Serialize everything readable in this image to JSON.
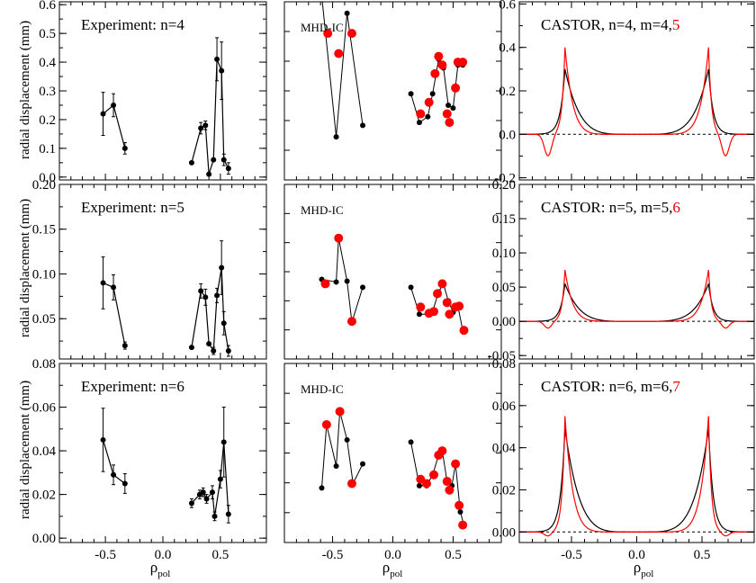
{
  "figure": {
    "ylabel": "radial displacement (mm)",
    "xlabel_main": "ρ",
    "xlabel_sub": "pol",
    "x_ticks": [
      "-0.5",
      "0.0",
      "0.5"
    ],
    "x_tick_values": [
      -0.5,
      0.0,
      0.5
    ]
  },
  "colors": {
    "black": "#000000",
    "red": "#ff0000",
    "red_text": "#e00000"
  },
  "chart_data": [
    {
      "type": "scatter",
      "row": 0,
      "col": 0,
      "title": "Experiment: n=4",
      "xlim": [
        -0.9,
        0.9
      ],
      "ylim": [
        -0.01,
        0.61
      ],
      "yticks": [
        0.0,
        0.1,
        0.2,
        0.3,
        0.4,
        0.5,
        0.6
      ],
      "ytick_labels": [
        "0.0",
        "0.1",
        "0.2",
        "0.3",
        "0.4",
        "0.5",
        "0.6"
      ],
      "series": [
        {
          "color": "black",
          "errorbars": true,
          "points": [
            [
              -0.52,
              0.22,
              0.075
            ],
            [
              -0.43,
              0.25,
              0.04
            ],
            [
              -0.33,
              0.1,
              0.02
            ]
          ]
        },
        {
          "color": "black",
          "errorbars": true,
          "points": [
            [
              0.25,
              0.05,
              0.0
            ],
            [
              0.33,
              0.17,
              0.02
            ],
            [
              0.37,
              0.18,
              0.015
            ],
            [
              0.4,
              0.01,
              0.0
            ],
            [
              0.44,
              0.06,
              0.0
            ],
            [
              0.47,
              0.41,
              0.075
            ],
            [
              0.51,
              0.37,
              0.1
            ],
            [
              0.53,
              0.06,
              0.02
            ],
            [
              0.57,
              0.03,
              0.02
            ]
          ]
        }
      ]
    },
    {
      "type": "scatter",
      "row": 0,
      "col": 1,
      "title": "MHD-IC",
      "xlim": [
        -0.9,
        0.9
      ],
      "ylim": [
        -0.01,
        0.61
      ],
      "series": [
        {
          "color": "black",
          "line": true,
          "points": [
            [
              -0.59,
              0.63
            ],
            [
              -0.47,
              0.14
            ],
            [
              -0.38,
              0.57
            ],
            [
              -0.25,
              0.18
            ]
          ]
        },
        {
          "color": "red",
          "line": false,
          "points": [
            [
              -0.54,
              0.5
            ],
            [
              -0.45,
              0.43
            ],
            [
              -0.34,
              0.5
            ]
          ]
        },
        {
          "color": "black",
          "line": true,
          "points": [
            [
              0.15,
              0.29
            ],
            [
              0.22,
              0.19
            ],
            [
              0.29,
              0.21
            ],
            [
              0.33,
              0.29
            ],
            [
              0.38,
              0.41
            ],
            [
              0.42,
              0.38
            ],
            [
              0.46,
              0.25
            ],
            [
              0.5,
              0.24
            ],
            [
              0.54,
              0.39
            ],
            [
              0.58,
              0.39
            ]
          ]
        },
        {
          "color": "red",
          "line": false,
          "points": [
            [
              0.23,
              0.22
            ],
            [
              0.3,
              0.26
            ],
            [
              0.35,
              0.36
            ],
            [
              0.38,
              0.42
            ],
            [
              0.41,
              0.39
            ],
            [
              0.45,
              0.22
            ],
            [
              0.47,
              0.19
            ],
            [
              0.52,
              0.31
            ],
            [
              0.54,
              0.4
            ],
            [
              0.58,
              0.4
            ]
          ]
        }
      ]
    },
    {
      "type": "line",
      "row": 0,
      "col": 2,
      "title_parts": [
        "CASTOR, n=4, m=4,",
        "5"
      ],
      "xlim": [
        -0.9,
        0.9
      ],
      "ylim": [
        -0.21,
        0.61
      ],
      "yticks": [
        -0.2,
        0.0,
        0.2,
        0.4,
        0.6
      ],
      "ytick_labels": [
        "-0.2",
        "0.0",
        "0.2",
        "0.4",
        "0.6"
      ],
      "dashed_zero": true,
      "profiles": [
        {
          "color": "black",
          "kind": "black",
          "amp": 0.3
        },
        {
          "color": "red",
          "kind": "red",
          "amp": 0.4,
          "undershoot": -0.1
        }
      ]
    },
    {
      "type": "scatter",
      "row": 1,
      "col": 0,
      "title": "Experiment: n=5",
      "xlim": [
        -0.9,
        0.9
      ],
      "ylim": [
        0.005,
        0.2
      ],
      "yticks": [
        0.05,
        0.1,
        0.15,
        0.2
      ],
      "ytick_labels": [
        "0.05",
        "0.10",
        "0.15",
        "0.20"
      ],
      "series": [
        {
          "color": "black",
          "errorbars": true,
          "points": [
            [
              -0.52,
              0.09,
              0.029
            ],
            [
              -0.43,
              0.085,
              0.014
            ],
            [
              -0.33,
              0.02,
              0.004
            ]
          ]
        },
        {
          "color": "black",
          "errorbars": true,
          "points": [
            [
              0.25,
              0.018,
              0.0
            ],
            [
              0.33,
              0.081,
              0.008
            ],
            [
              0.37,
              0.074,
              0.009
            ],
            [
              0.4,
              0.022,
              0.0
            ],
            [
              0.44,
              0.014,
              0.004
            ],
            [
              0.47,
              0.076,
              0.008
            ],
            [
              0.51,
              0.107,
              0.03
            ],
            [
              0.53,
              0.045,
              0.013
            ],
            [
              0.57,
              0.014,
              0.006
            ]
          ]
        }
      ]
    },
    {
      "type": "scatter",
      "row": 1,
      "col": 1,
      "title": "MHD-IC",
      "xlim": [
        -0.9,
        0.9
      ],
      "ylim": [
        0.005,
        0.2
      ],
      "series": [
        {
          "color": "black",
          "line": true,
          "points": [
            [
              -0.59,
              0.094
            ],
            [
              -0.47,
              0.091
            ],
            [
              -0.45,
              0.14
            ],
            [
              -0.38,
              0.092
            ],
            [
              -0.34,
              0.046
            ],
            [
              -0.25,
              0.085
            ]
          ]
        },
        {
          "color": "red",
          "line": false,
          "points": [
            [
              -0.56,
              0.089
            ],
            [
              -0.45,
              0.14
            ],
            [
              -0.34,
              0.047
            ]
          ]
        },
        {
          "color": "black",
          "line": true,
          "points": [
            [
              0.15,
              0.085
            ],
            [
              0.22,
              0.055
            ],
            [
              0.29,
              0.055
            ],
            [
              0.33,
              0.058
            ],
            [
              0.38,
              0.08
            ],
            [
              0.42,
              0.089
            ],
            [
              0.46,
              0.07
            ],
            [
              0.5,
              0.057
            ],
            [
              0.54,
              0.064
            ],
            [
              0.58,
              0.037
            ]
          ]
        },
        {
          "color": "red",
          "line": false,
          "points": [
            [
              0.23,
              0.063
            ],
            [
              0.3,
              0.056
            ],
            [
              0.34,
              0.058
            ],
            [
              0.37,
              0.078
            ],
            [
              0.41,
              0.089
            ],
            [
              0.45,
              0.068
            ],
            [
              0.47,
              0.055
            ],
            [
              0.52,
              0.063
            ],
            [
              0.55,
              0.064
            ],
            [
              0.59,
              0.037
            ]
          ]
        }
      ]
    },
    {
      "type": "line",
      "row": 1,
      "col": 2,
      "title_parts": [
        "CASTOR: n=5, m=5,",
        "6"
      ],
      "xlim": [
        -0.9,
        0.9
      ],
      "ylim": [
        -0.055,
        0.2
      ],
      "yticks": [
        -0.05,
        0.0,
        0.05,
        0.1,
        0.15,
        0.2
      ],
      "ytick_labels": [
        "-0.05",
        "0.00",
        "0.05",
        "0.10",
        "0.15",
        "0.20"
      ],
      "dashed_zero": true,
      "profiles": [
        {
          "color": "black",
          "kind": "black",
          "amp": 0.055
        },
        {
          "color": "red",
          "kind": "red",
          "amp": 0.075,
          "undershoot": -0.01
        }
      ]
    },
    {
      "type": "scatter",
      "row": 2,
      "col": 0,
      "title": "Experiment: n=6",
      "xlim": [
        -0.9,
        0.9
      ],
      "ylim": [
        -0.002,
        0.08
      ],
      "yticks": [
        0.0,
        0.02,
        0.04,
        0.06,
        0.08
      ],
      "ytick_labels": [
        "0.00",
        "0.02",
        "0.04",
        "0.06",
        "0.08"
      ],
      "series": [
        {
          "color": "black",
          "errorbars": true,
          "points": [
            [
              -0.52,
              0.045,
              0.0145
            ],
            [
              -0.43,
              0.029,
              0.0045
            ],
            [
              -0.33,
              0.025,
              0.0045
            ]
          ]
        },
        {
          "color": "black",
          "errorbars": true,
          "points": [
            [
              0.25,
              0.016,
              0.002
            ],
            [
              0.32,
              0.02,
              0.002
            ],
            [
              0.35,
              0.021,
              0.002
            ],
            [
              0.38,
              0.018,
              0.002
            ],
            [
              0.43,
              0.021,
              0.003
            ],
            [
              0.45,
              0.01,
              0.002
            ],
            [
              0.5,
              0.027,
              0.004
            ],
            [
              0.53,
              0.044,
              0.016
            ],
            [
              0.57,
              0.011,
              0.004
            ]
          ]
        }
      ]
    },
    {
      "type": "scatter",
      "row": 2,
      "col": 1,
      "title": "MHD-IC",
      "xlim": [
        -0.9,
        0.9
      ],
      "ylim": [
        -0.002,
        0.08
      ],
      "series": [
        {
          "color": "black",
          "line": true,
          "points": [
            [
              -0.59,
              0.023
            ],
            [
              -0.55,
              0.052
            ],
            [
              -0.47,
              0.033
            ],
            [
              -0.44,
              0.058
            ],
            [
              -0.38,
              0.045
            ],
            [
              -0.33,
              0.025
            ],
            [
              -0.25,
              0.034
            ]
          ]
        },
        {
          "color": "red",
          "line": false,
          "points": [
            [
              -0.55,
              0.052
            ],
            [
              -0.44,
              0.058
            ],
            [
              -0.34,
              0.025
            ]
          ]
        },
        {
          "color": "black",
          "line": true,
          "points": [
            [
              0.15,
              0.044
            ],
            [
              0.22,
              0.024
            ],
            [
              0.28,
              0.024
            ],
            [
              0.33,
              0.029
            ],
            [
              0.38,
              0.038
            ],
            [
              0.41,
              0.04
            ],
            [
              0.45,
              0.026
            ],
            [
              0.49,
              0.024
            ],
            [
              0.52,
              0.034
            ],
            [
              0.56,
              0.012
            ],
            [
              0.59,
              0.006
            ]
          ]
        },
        {
          "color": "red",
          "line": false,
          "points": [
            [
              0.23,
              0.027
            ],
            [
              0.28,
              0.025
            ],
            [
              0.34,
              0.029
            ],
            [
              0.38,
              0.038
            ],
            [
              0.41,
              0.04
            ],
            [
              0.45,
              0.026
            ],
            [
              0.47,
              0.022
            ],
            [
              0.52,
              0.034
            ],
            [
              0.55,
              0.015
            ],
            [
              0.58,
              0.006
            ]
          ]
        }
      ]
    },
    {
      "type": "line",
      "row": 2,
      "col": 2,
      "title_parts": [
        "CASTOR: n=6, m=6,",
        "7"
      ],
      "xlim": [
        -0.9,
        0.9
      ],
      "ylim": [
        -0.005,
        0.08
      ],
      "yticks": [
        0.0,
        0.02,
        0.04,
        0.06,
        0.08
      ],
      "ytick_labels": [
        "0.00",
        "0.02",
        "0.04",
        "0.06",
        "0.08"
      ],
      "dashed_zero": true,
      "profiles": [
        {
          "color": "black",
          "kind": "black",
          "amp": 0.049
        },
        {
          "color": "red",
          "kind": "red",
          "amp": 0.055,
          "undershoot": -0.002
        }
      ]
    }
  ]
}
